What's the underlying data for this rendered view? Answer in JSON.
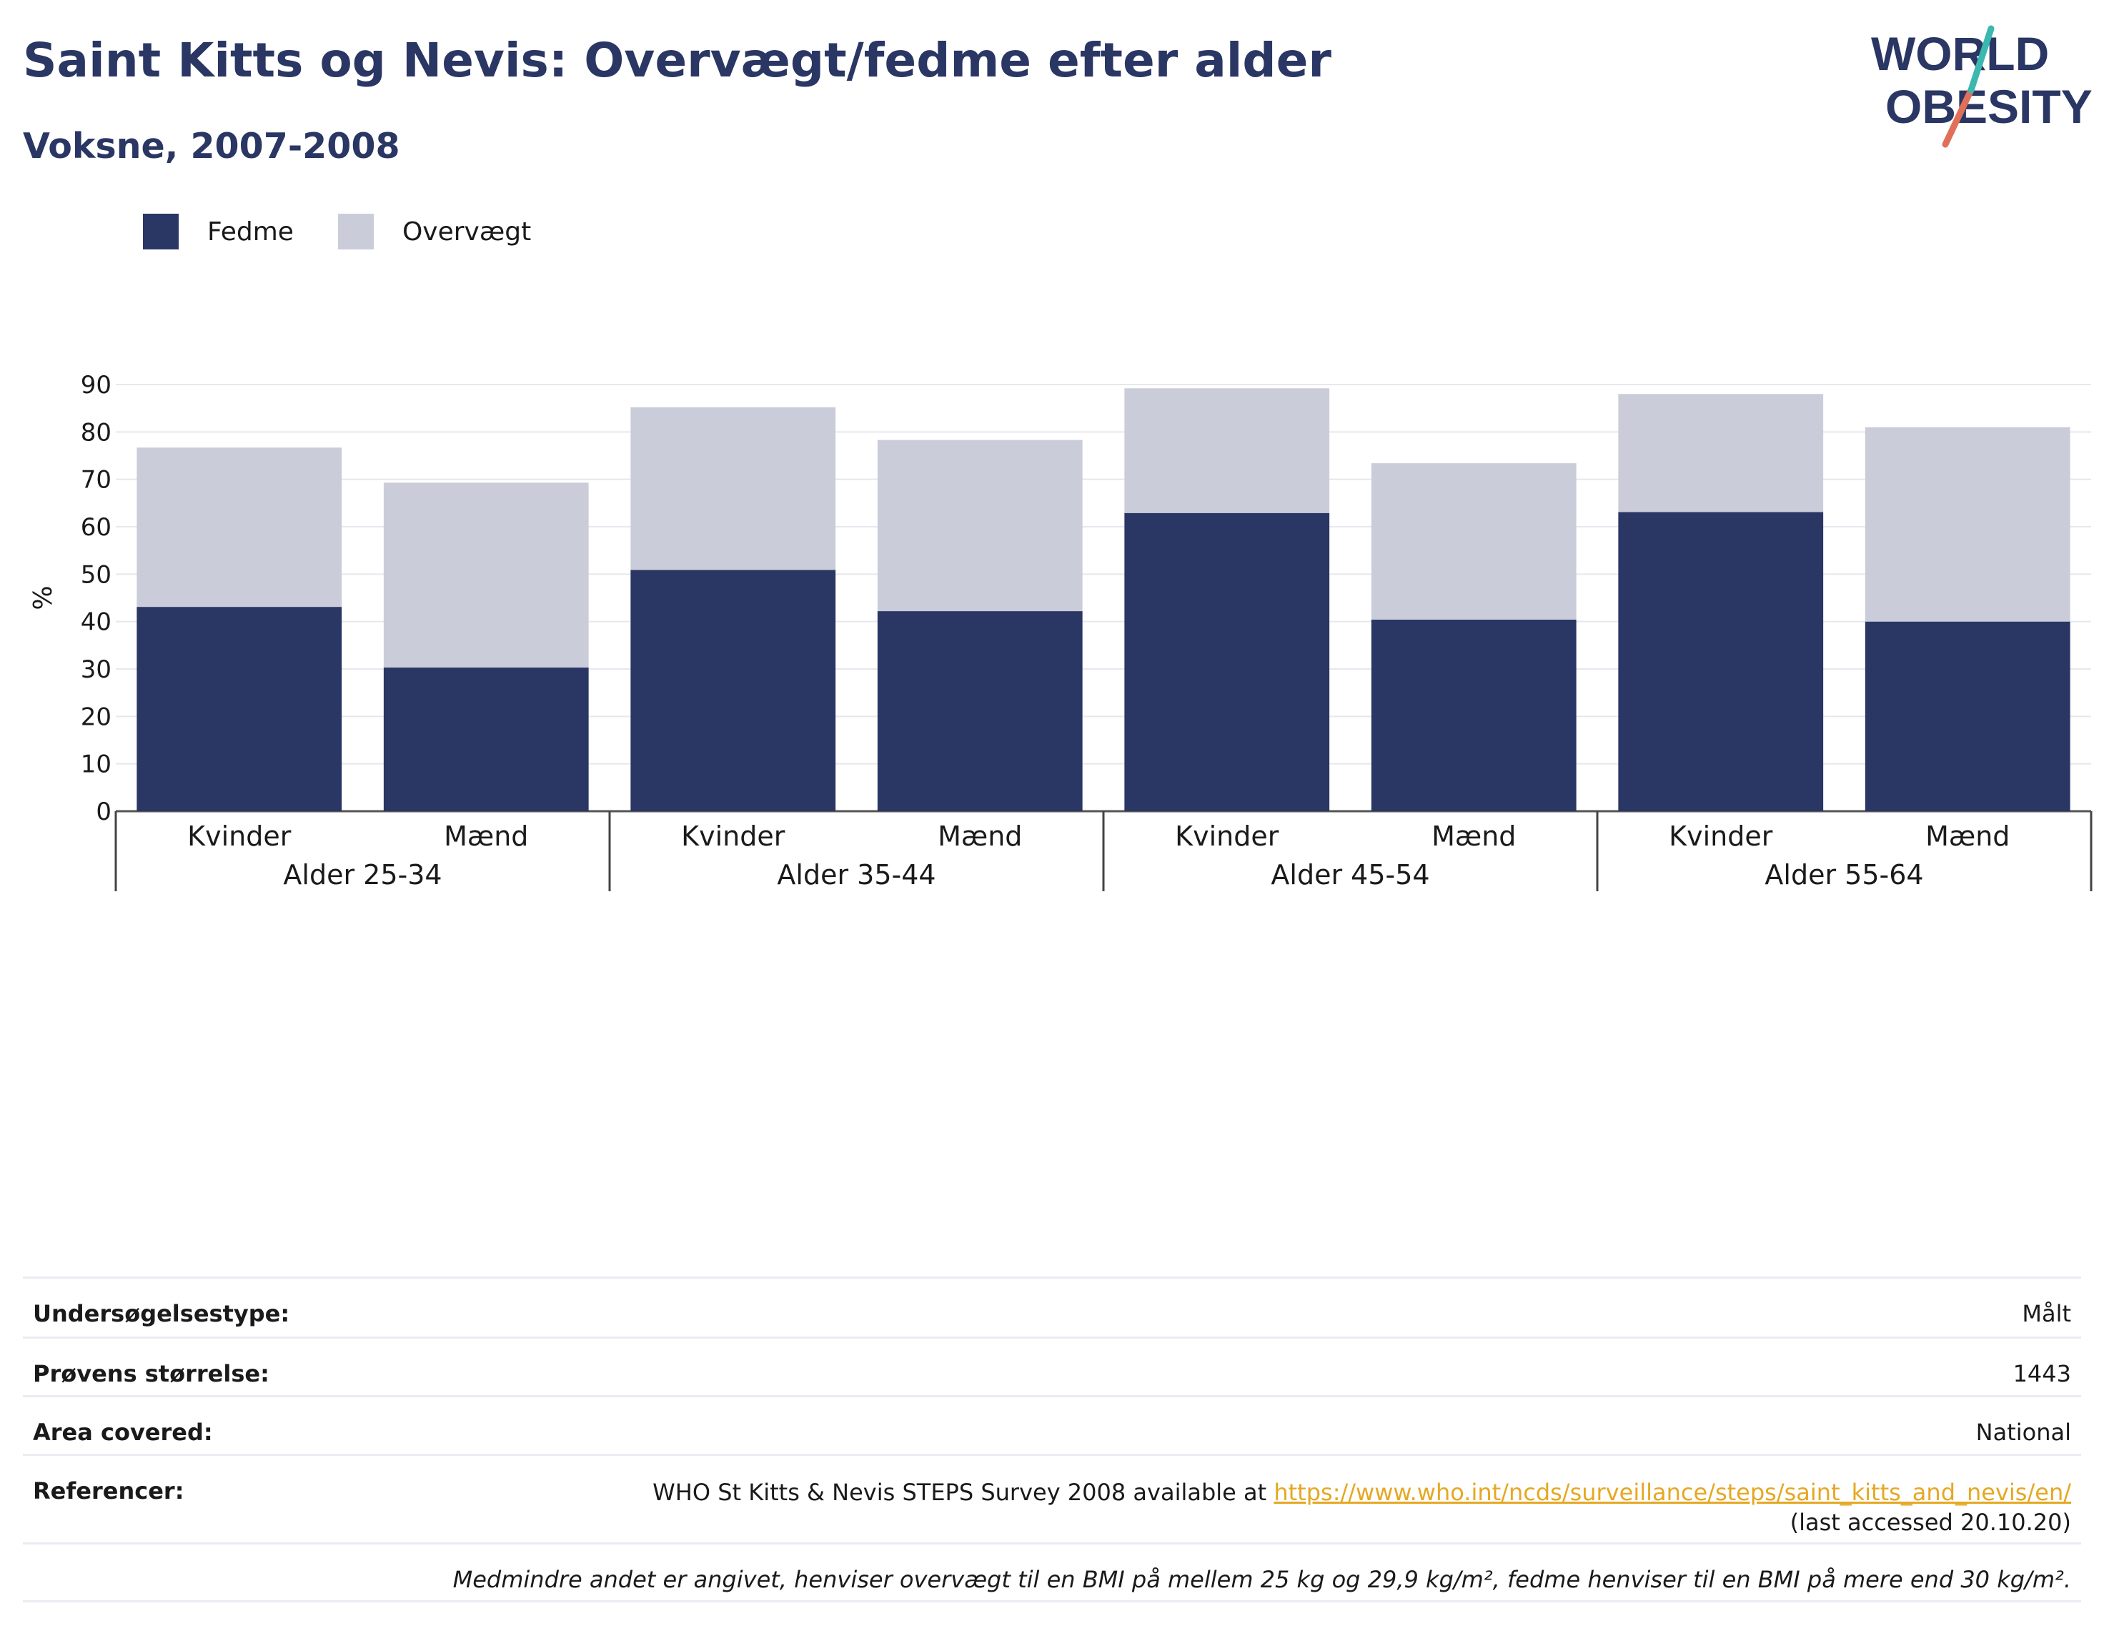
{
  "header": {
    "title": "Saint Kitts og Nevis: Overvægt/fedme efter alder",
    "subtitle": "Voksne, 2007-2008",
    "logo_line1": "WORLD",
    "logo_line2": "OBESITY"
  },
  "legend": {
    "items": [
      {
        "label": "Fedme",
        "color": "#2a3663"
      },
      {
        "label": "Overvægt",
        "color": "#cacdd9"
      }
    ]
  },
  "chart_data": {
    "type": "bar",
    "stacked": true,
    "ylabel": "%",
    "ylim": [
      0,
      90
    ],
    "yticks": [
      0,
      10,
      20,
      30,
      40,
      50,
      60,
      70,
      80,
      90
    ],
    "grid": true,
    "legend_position": "top-left",
    "groups": [
      "Alder 25-34",
      "Alder 35-44",
      "Alder 45-54",
      "Alder 55-64"
    ],
    "categories": [
      "Kvinder",
      "Mænd",
      "Kvinder",
      "Mænd",
      "Kvinder",
      "Mænd",
      "Kvinder",
      "Mænd"
    ],
    "series": [
      {
        "name": "Fedme",
        "color": "#2a3663",
        "values": [
          43.1,
          30.3,
          50.9,
          42.2,
          62.9,
          40.4,
          63.1,
          40.0
        ]
      },
      {
        "name": "Overvægt",
        "color": "#cacdd9",
        "values": [
          33.6,
          39.0,
          34.3,
          36.1,
          26.3,
          33.0,
          24.9,
          41.0
        ]
      }
    ]
  },
  "info": {
    "survey_type_label": "Undersøgelsestype:",
    "survey_type_value": "Målt",
    "sample_size_label": "Prøvens størrelse:",
    "sample_size_value": "1443",
    "area_label": "Area covered:",
    "area_value": "National",
    "references_label": "Referencer:",
    "references_text": "WHO St Kitts & Nevis STEPS Survey 2008 available at",
    "references_link": "https://www.who.int/ncds/surveillance/steps/saint_kitts_and_nevis/en/",
    "references_suffix": "(last accessed 20.10.20)",
    "note": "Medmindre andet er angivet, henviser overvægt til en BMI på mellem 25 kg og 29,9 kg/m², fedme henviser til en BMI på mere end 30 kg/m²."
  }
}
